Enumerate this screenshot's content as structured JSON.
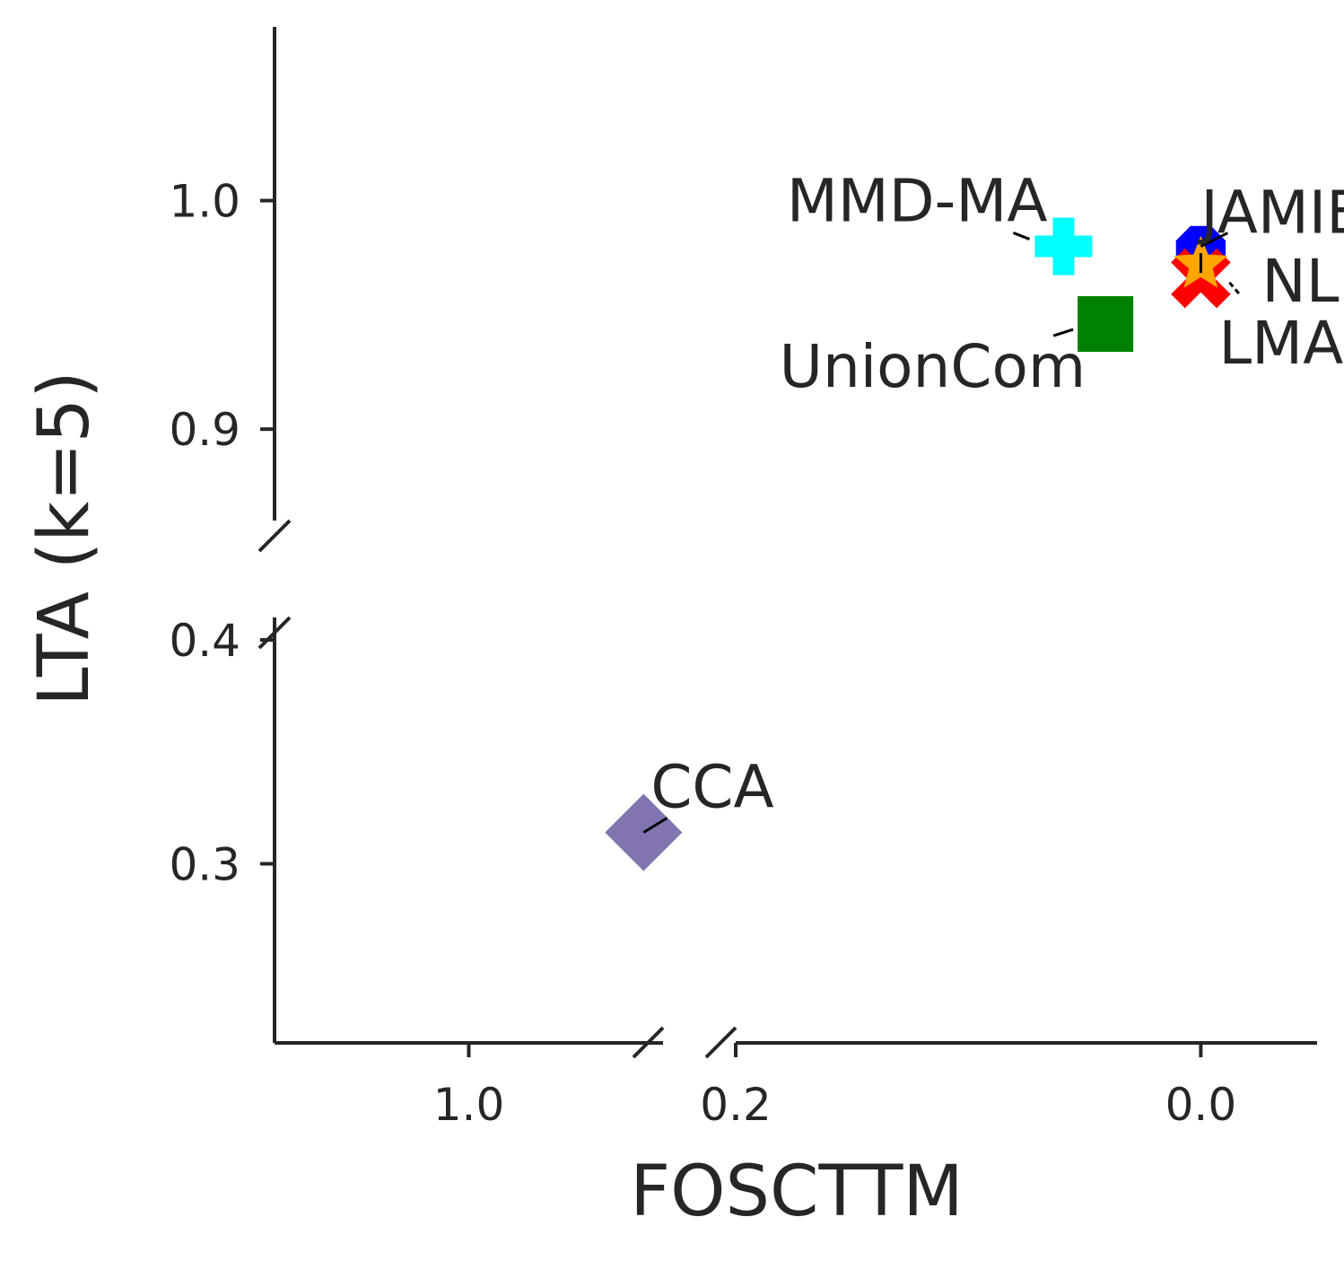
{
  "chart_data": {
    "type": "scatter",
    "xlabel": "FOSCTTM",
    "ylabel": "LTA (k=5)",
    "x_axis_reversed": true,
    "x_broken": true,
    "y_broken": true,
    "grid": false,
    "x_segments": [
      {
        "range": [
          1.1,
          0.9
        ],
        "ticks": [
          1.0
        ],
        "tick_labels": [
          "1.0"
        ]
      },
      {
        "range": [
          0.2,
          -0.05
        ],
        "ticks": [
          0.2,
          0.0
        ],
        "tick_labels": [
          "0.2",
          "0.0"
        ]
      }
    ],
    "y_segments": [
      {
        "range": [
          0.22,
          0.41
        ],
        "ticks": [
          0.3,
          0.4
        ],
        "tick_labels": [
          "0.3",
          "0.4"
        ]
      },
      {
        "range": [
          0.86,
          1.076
        ],
        "ticks": [
          0.9,
          1.0
        ],
        "tick_labels": [
          "0.9",
          "1.0"
        ]
      }
    ],
    "points": [
      {
        "label": "JAMIE",
        "x": 0.0,
        "y": 0.978,
        "marker": "octagon",
        "color": "#0000ff"
      },
      {
        "label": "MMD-MA",
        "x": 0.059,
        "y": 0.98,
        "marker": "plus",
        "color": "#00ffff"
      },
      {
        "label": "UnionCom",
        "x": 0.041,
        "y": 0.946,
        "marker": "square",
        "color": "#008000"
      },
      {
        "label": "NLMA",
        "x": 0.0,
        "y": 0.966,
        "marker": "x",
        "color": "#ff0000"
      },
      {
        "label": "LMA",
        "x": 0.0,
        "y": 0.972,
        "marker": "star",
        "color": "#ffa500"
      },
      {
        "label": "CCA",
        "x": 0.91,
        "y": 0.314,
        "marker": "diamond",
        "color": "#8174b1"
      }
    ]
  }
}
